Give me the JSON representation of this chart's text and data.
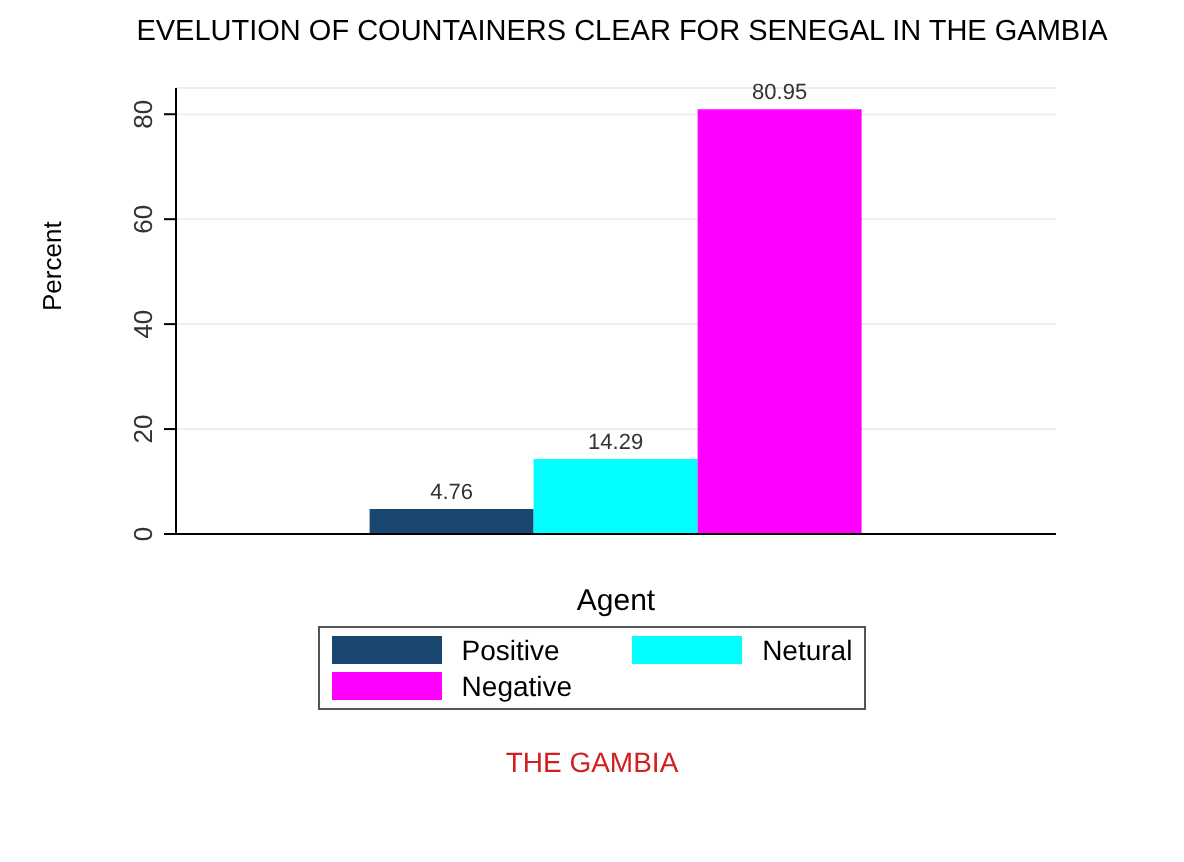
{
  "chart_data": {
    "type": "bar",
    "title": "EVELUTION OF COUNTAINERS CLEAR FOR SENEGAL IN THE GAMBIA",
    "xlabel": "Agent",
    "ylabel": "Percent",
    "categories": [
      null
    ],
    "series": [
      {
        "name": "Positive",
        "color": "#1a476f",
        "values": [
          4.76
        ]
      },
      {
        "name": "Netural",
        "color": "#00ffff",
        "values": [
          14.29
        ]
      },
      {
        "name": "Negative",
        "color": "#ff00ff",
        "values": [
          80.95
        ]
      }
    ],
    "ylim": [
      0,
      85
    ],
    "yticks": [
      0,
      20,
      40,
      60,
      80
    ],
    "grid": "y",
    "data_labels": true,
    "legend": "bottom",
    "annotations": [
      "THE GAMBIA"
    ]
  }
}
